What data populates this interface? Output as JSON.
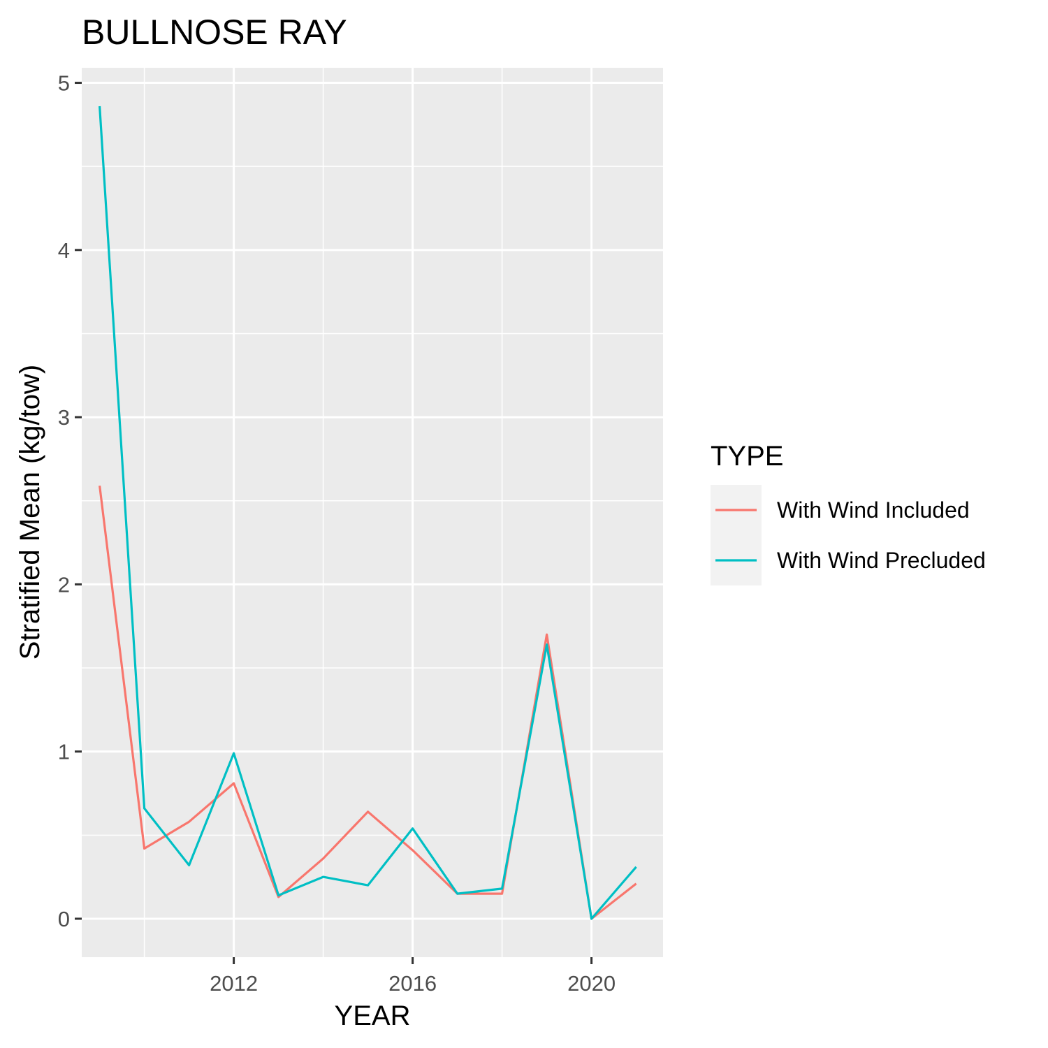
{
  "chart_data": {
    "type": "line",
    "title": "BULLNOSE RAY",
    "xlabel": "YEAR",
    "ylabel": "Stratified Mean (kg/tow)",
    "xlim": [
      2008.6,
      2021.6
    ],
    "ylim": [
      -0.23,
      5.09
    ],
    "x_ticks": [
      2012,
      2016,
      2020
    ],
    "x_tick_labels": [
      "2012",
      "2016",
      "2020"
    ],
    "y_ticks": [
      0,
      1,
      2,
      3,
      4,
      5
    ],
    "y_tick_labels": [
      "0",
      "1",
      "2",
      "3",
      "4",
      "5"
    ],
    "grid": true,
    "legend": {
      "title": "TYPE",
      "position": "right"
    },
    "x": [
      2009,
      2010,
      2011,
      2012,
      2013,
      2014,
      2015,
      2016,
      2017,
      2018,
      2019,
      2020,
      2021
    ],
    "series": [
      {
        "name": "With Wind Included",
        "color": "#f8766d",
        "values": [
          2.59,
          0.42,
          0.58,
          0.81,
          0.13,
          0.36,
          0.64,
          0.41,
          0.15,
          0.15,
          1.7,
          0.0,
          0.21
        ]
      },
      {
        "name": "With Wind Precluded",
        "color": "#00bfc4",
        "values": [
          4.86,
          0.66,
          0.32,
          0.99,
          0.14,
          0.25,
          0.2,
          0.54,
          0.15,
          0.18,
          1.64,
          0.0,
          0.31
        ]
      }
    ]
  }
}
